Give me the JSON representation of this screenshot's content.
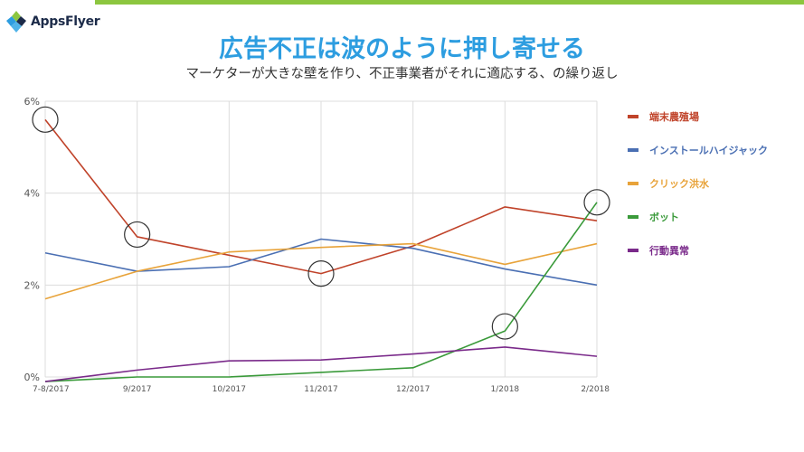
{
  "brand": {
    "logo_text": "AppsFlyer"
  },
  "header": {
    "title": "広告不正は波のように押し寄せる",
    "subtitle": "マーケターが大きな壁を作り、不正事業者がそれに適応する、の繰り返し"
  },
  "chart_data": {
    "type": "line",
    "categories": [
      "7-8/2017",
      "9/2017",
      "10/2017",
      "11/2017",
      "12/2017",
      "1/2018",
      "2/2018"
    ],
    "ylim": [
      0,
      6
    ],
    "yticks": [
      0,
      2,
      4,
      6
    ],
    "ytick_labels": [
      "0%",
      "2%",
      "4%",
      "6%"
    ],
    "grid": true,
    "legend_position": "right",
    "series": [
      {
        "name": "端末農殖場",
        "color": "#c0432a",
        "values": [
          5.6,
          3.05,
          2.65,
          2.25,
          2.85,
          3.7,
          3.4
        ]
      },
      {
        "name": "インストールハイジャック",
        "color": "#4a6fb3",
        "values": [
          2.7,
          2.3,
          2.4,
          3.0,
          2.8,
          2.35,
          2.0
        ]
      },
      {
        "name": "クリック洪水",
        "color": "#e8a33a",
        "values": [
          1.7,
          2.3,
          2.72,
          2.82,
          2.9,
          2.45,
          2.9
        ]
      },
      {
        "name": "ボット",
        "color": "#3a9a3a",
        "values": [
          -0.1,
          0.0,
          0.0,
          0.1,
          0.2,
          1.0,
          3.8
        ]
      },
      {
        "name": "行動異常",
        "color": "#7a2a8a",
        "values": [
          -0.1,
          0.15,
          0.35,
          0.37,
          0.5,
          0.65,
          0.45
        ]
      }
    ],
    "annotations": [
      {
        "type": "circle",
        "category_index": 0,
        "value": 5.6
      },
      {
        "type": "circle",
        "category_index": 1,
        "value": 3.1
      },
      {
        "type": "circle",
        "category_index": 3,
        "value": 2.25
      },
      {
        "type": "circle",
        "category_index": 5,
        "value": 1.1
      },
      {
        "type": "circle",
        "category_index": 6,
        "value": 3.8
      }
    ]
  }
}
